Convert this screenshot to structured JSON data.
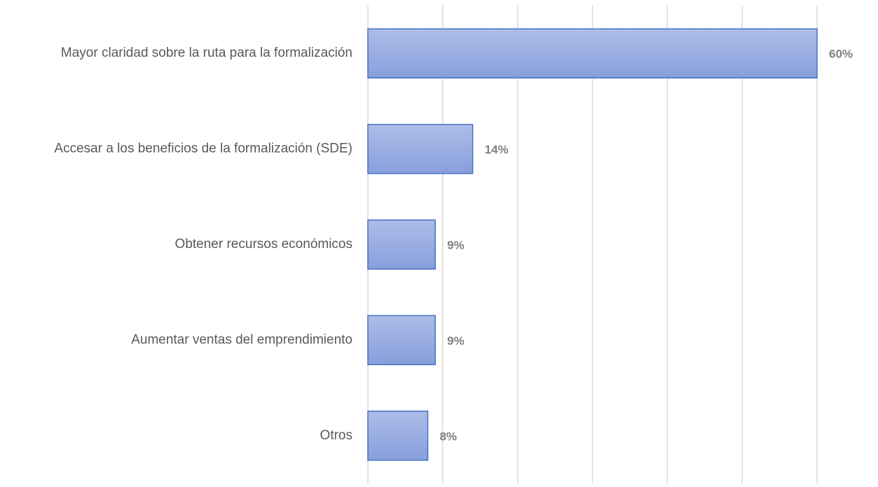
{
  "chart_data": {
    "type": "bar",
    "orientation": "horizontal",
    "categories": [
      "Mayor claridad sobre la ruta para la formalización",
      "Accesar a los beneficios de la formalización (SDE)",
      "Obtener recursos económicos",
      "Aumentar ventas del emprendimiento",
      "Otros"
    ],
    "values": [
      60,
      14,
      9,
      9,
      8
    ],
    "value_labels": [
      "60%",
      "14%",
      "9%",
      "9%",
      "8%"
    ],
    "color": "#4472c4",
    "xlim": [
      0,
      60
    ],
    "xticks": [
      0,
      10,
      20,
      30,
      40,
      50,
      60
    ],
    "grid": true
  }
}
